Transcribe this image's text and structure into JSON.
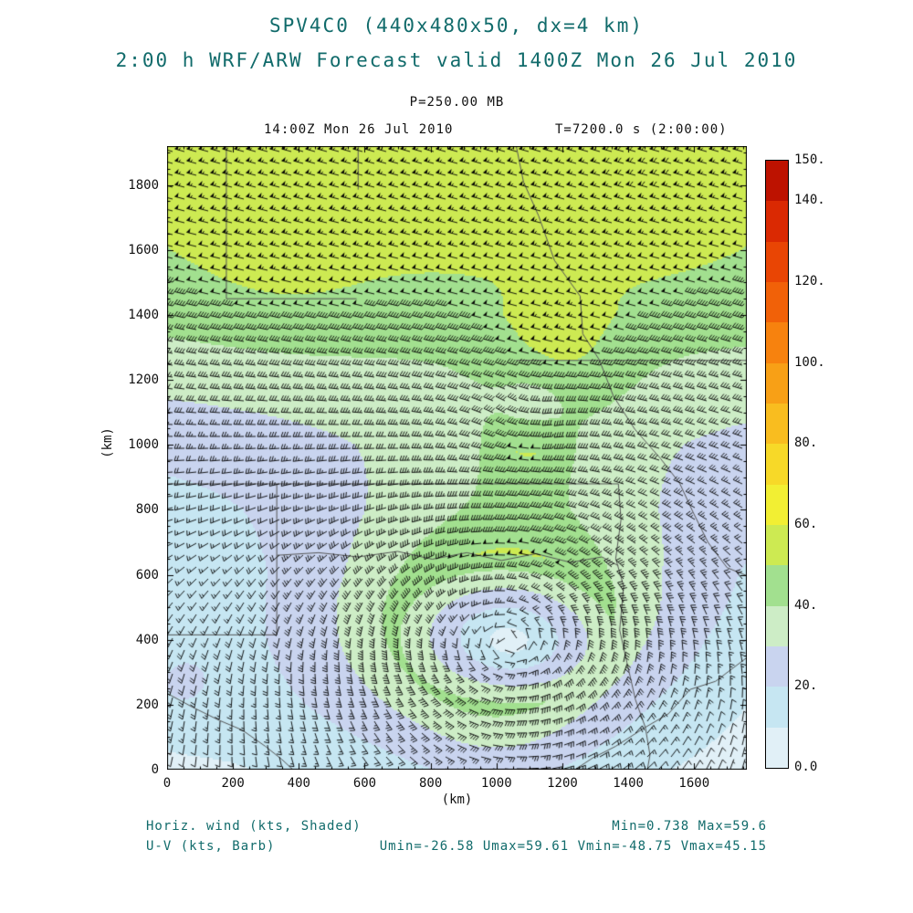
{
  "title": {
    "line1": "SPV4C0 (440x480x50, dx=4 km)",
    "line2": "2:00 h WRF/ARW Forecast valid 1400Z Mon 26 Jul 2010"
  },
  "subheader": {
    "pressure": "P=250.00 MB",
    "valid_time": "14:00Z Mon 26 Jul 2010",
    "forecast_time": "T=7200.0 s (2:00:00)"
  },
  "footer": {
    "shaded_label": "Horiz. wind (kts, Shaded)",
    "barb_label": "U-V (kts, Barb)",
    "minmax": "Min=0.738 Max=59.6",
    "uv_minmax": "Umin=-26.58 Umax=59.61 Vmin=-48.75 Vmax=45.15"
  },
  "colors": {
    "title_text": "#116b6b",
    "body_text": "#111111",
    "outline": "#555555",
    "frame": "#000000"
  },
  "chart_data": {
    "type": "heatmap",
    "field": "horizontal wind speed (kts), shaded, with wind barbs (U-V, kts)",
    "pressure_level_mb": 250.0,
    "x_range_km": [
      0,
      1760
    ],
    "y_range_km": [
      0,
      1920
    ],
    "x_ticks": [
      0,
      200,
      400,
      600,
      800,
      1000,
      1200,
      1400,
      1600
    ],
    "y_ticks": [
      0,
      200,
      400,
      600,
      800,
      1000,
      1200,
      1400,
      1600,
      1800
    ],
    "minor_tick_km": 50,
    "axis_title": "(km)",
    "stats": {
      "min": 0.738,
      "max": 59.6,
      "umin": -26.58,
      "umax": 59.61,
      "vmin": -48.75,
      "vmax": 45.15
    },
    "colorbar": {
      "min": 0,
      "max": 150,
      "level_step": 10,
      "ticks": [
        {
          "value": 0,
          "label": "0.0"
        },
        {
          "value": 20,
          "label": "20."
        },
        {
          "value": 40,
          "label": "40."
        },
        {
          "value": 60,
          "label": "60."
        },
        {
          "value": 80,
          "label": "80."
        },
        {
          "value": 100,
          "label": "100."
        },
        {
          "value": 120,
          "label": "120."
        },
        {
          "value": 140,
          "label": "140."
        },
        {
          "value": 150,
          "label": "150."
        }
      ],
      "colors": [
        "#e1f0f7",
        "#c6e6f2",
        "#c9d4ef",
        "#cdedc6",
        "#a2e08f",
        "#cdea52",
        "#f2ef33",
        "#f7d928",
        "#f9bd1f",
        "#f8a016",
        "#f7820e",
        "#f16108",
        "#e94504",
        "#da2902",
        "#bd1200"
      ]
    },
    "wind_model": {
      "comment": "coarse analytic reconstruction of the plotted wind field: jet across the top, upper anticyclone over the lower-middle of the domain",
      "base_profile": [
        {
          "y": 0,
          "u": 5,
          "v": 2
        },
        {
          "y": 200,
          "u": 5,
          "v": 3
        },
        {
          "y": 400,
          "u": 6,
          "v": 2
        },
        {
          "y": 600,
          "u": 8,
          "v": 0
        },
        {
          "y": 800,
          "u": 13,
          "v": -2
        },
        {
          "y": 1000,
          "u": 20,
          "v": -4
        },
        {
          "y": 1200,
          "u": 30,
          "v": -7
        },
        {
          "y": 1400,
          "u": 40,
          "v": -11
        },
        {
          "y": 1600,
          "u": 45,
          "v": -12
        },
        {
          "y": 1800,
          "u": 47,
          "v": -13
        },
        {
          "y": 1920,
          "u": 48,
          "v": -14
        }
      ],
      "vortices": [
        {
          "x": 1020,
          "y": 430,
          "vmax": 40,
          "r_core": 240,
          "decay": 330,
          "xscale": 0.72,
          "rotation": "cw"
        },
        {
          "x": 1100,
          "y": 1060,
          "vmax": 13,
          "r_core": 90,
          "decay": 130,
          "xscale": 1.0,
          "rotation": "ccw"
        }
      ],
      "speed_bumps": [
        {
          "x": 350,
          "y": 1700,
          "r": 330,
          "amp": 8
        },
        {
          "x": 1450,
          "y": 1820,
          "r": 300,
          "amp": 8
        },
        {
          "x": 900,
          "y": 1780,
          "r": 260,
          "amp": 5
        },
        {
          "x": 1180,
          "y": 1250,
          "r": 220,
          "amp": 14
        },
        {
          "x": 30,
          "y": 260,
          "r": 150,
          "amp": 9
        },
        {
          "x": 1020,
          "y": 150,
          "r": 260,
          "amp": 8
        }
      ],
      "speed_cap": 59.5
    },
    "map_outlines": [
      [
        [
          0,
          880
        ],
        [
          1370,
          880
        ]
      ],
      [
        [
          1370,
          880
        ],
        [
          1378,
          770
        ],
        [
          1362,
          650
        ],
        [
          1386,
          565
        ],
        [
          1374,
          430
        ],
        [
          1396,
          330
        ],
        [
          1422,
          215
        ],
        [
          1452,
          130
        ],
        [
          1466,
          45
        ],
        [
          1458,
          0
        ]
      ],
      [
        [
          333,
          880
        ],
        [
          333,
          415
        ],
        [
          0,
          415
        ]
      ],
      [
        [
          180,
          1920
        ],
        [
          180,
          1450
        ],
        [
          575,
          1450
        ]
      ],
      [
        [
          1060,
          1260
        ],
        [
          1760,
          1260
        ]
      ],
      [
        [
          1060,
          1920
        ],
        [
          1082,
          1810
        ],
        [
          1128,
          1705
        ],
        [
          1176,
          1568
        ],
        [
          1254,
          1458
        ],
        [
          1262,
          1342
        ],
        [
          1312,
          1262
        ]
      ],
      [
        [
          580,
          1920
        ],
        [
          580,
          1786
        ]
      ],
      [
        [
          333,
          660
        ],
        [
          460,
          668
        ],
        [
          580,
          655
        ],
        [
          700,
          672
        ],
        [
          805,
          648
        ],
        [
          910,
          668
        ],
        [
          1015,
          644
        ],
        [
          1120,
          665
        ],
        [
          1225,
          638
        ],
        [
          1320,
          655
        ],
        [
          1370,
          628
        ]
      ],
      [
        [
          1312,
          1262
        ],
        [
          1355,
          1150
        ],
        [
          1420,
          1048
        ],
        [
          1498,
          958
        ],
        [
          1556,
          882
        ],
        [
          1598,
          790
        ],
        [
          1642,
          700
        ],
        [
          1700,
          622
        ],
        [
          1758,
          598
        ]
      ],
      [
        [
          1760,
          345
        ],
        [
          1665,
          272
        ],
        [
          1588,
          247
        ],
        [
          1522,
          172
        ],
        [
          1448,
          128
        ],
        [
          1362,
          72
        ],
        [
          1292,
          36
        ],
        [
          1238,
          0
        ]
      ],
      [
        [
          0,
          235
        ],
        [
          78,
          192
        ],
        [
          158,
          152
        ],
        [
          228,
          122
        ],
        [
          298,
          72
        ],
        [
          348,
          32
        ],
        [
          382,
          0
        ]
      ]
    ]
  }
}
